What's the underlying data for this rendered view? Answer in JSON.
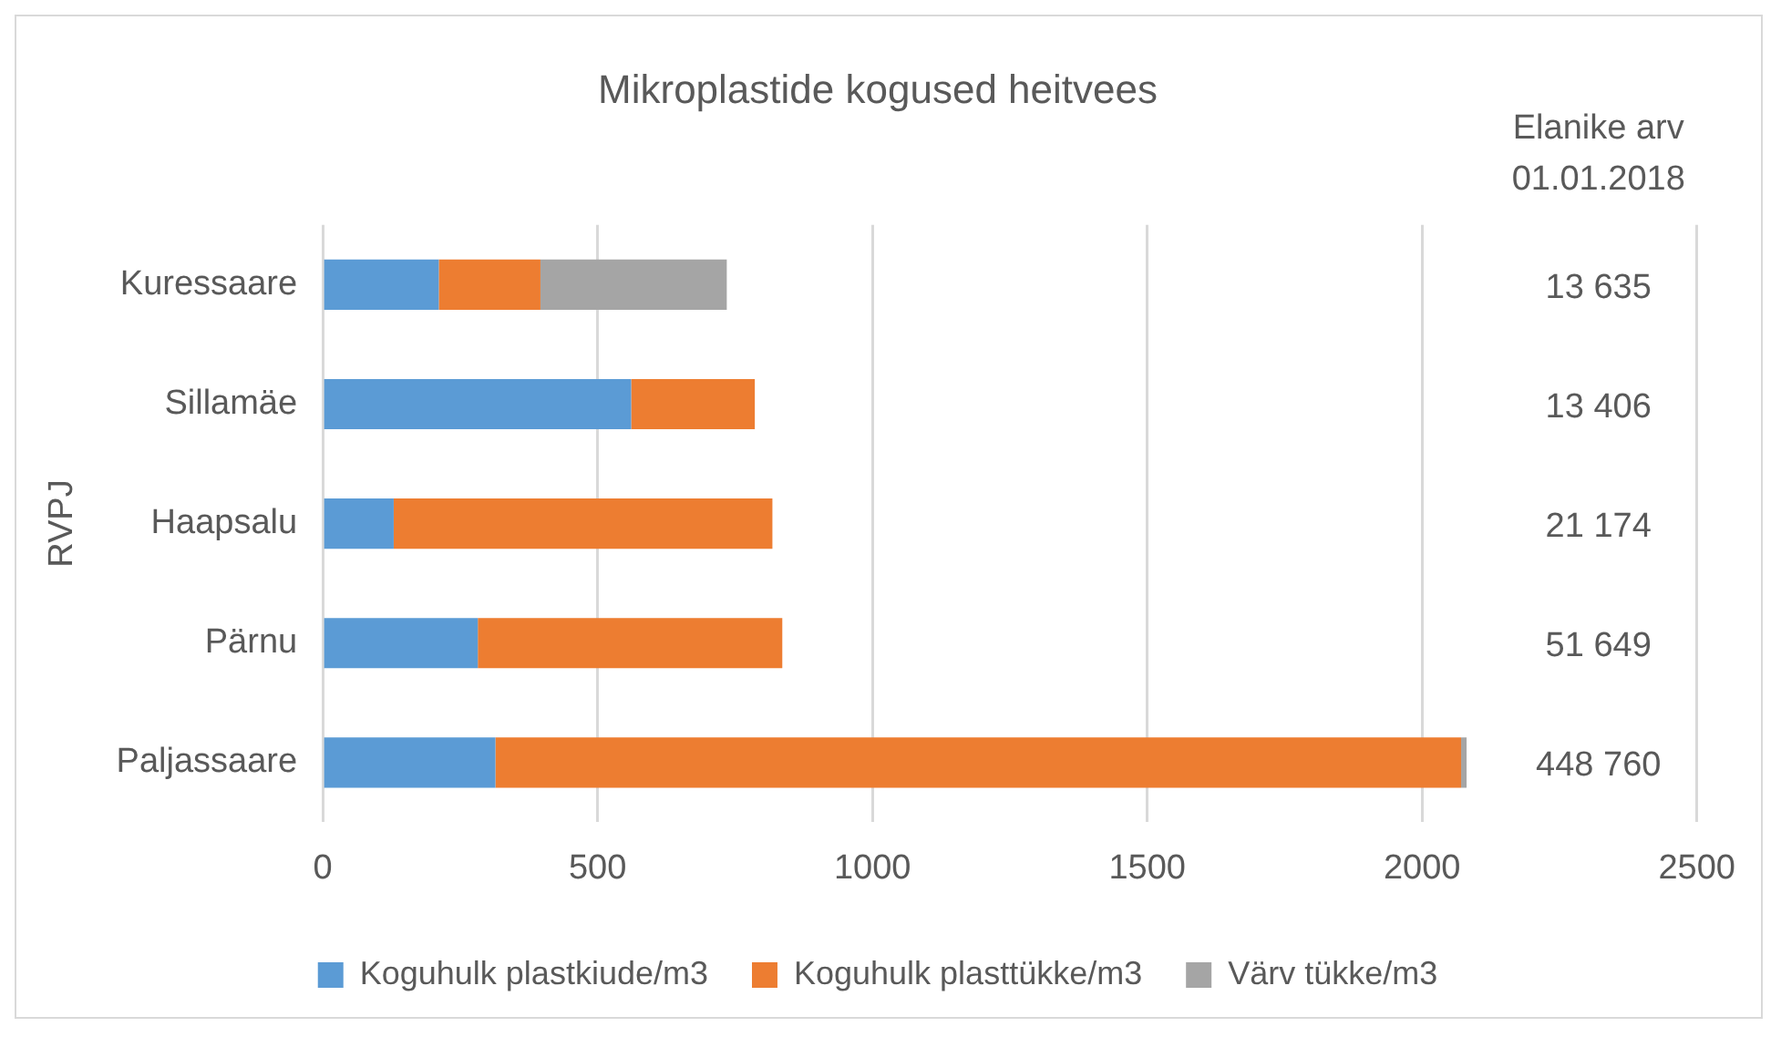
{
  "chart_data": {
    "type": "bar",
    "orientation": "horizontal",
    "stacked": true,
    "title": "Mikroplastide kogused heitvees",
    "ylabel": "RVPJ",
    "categories": [
      "Kuressaare",
      "Sillamäe",
      "Haapsalu",
      "Pärnu",
      "Paljassaare"
    ],
    "series": [
      {
        "name": "Koguhulk plastkiude/m3",
        "color": "#5b9bd5",
        "values": [
          211,
          561,
          129,
          282,
          314
        ]
      },
      {
        "name": "Koguhulk plasttükke/m3",
        "color": "#ed7d31",
        "values": [
          185,
          225,
          689,
          554,
          1757
        ]
      },
      {
        "name": "Värv tükke/m3",
        "color": "#a5a5a5",
        "values": [
          339,
          null,
          null,
          null,
          10
        ]
      }
    ],
    "xlim": [
      0,
      2500
    ],
    "xticks": [
      0,
      500,
      1000,
      1500,
      2000,
      2500
    ],
    "grid": "x",
    "legend": "bottom",
    "annotations": [
      "Elanike arv\n01.01.2018",
      "13 635",
      "13 406",
      "21 174",
      "51 649",
      "448 760"
    ]
  }
}
